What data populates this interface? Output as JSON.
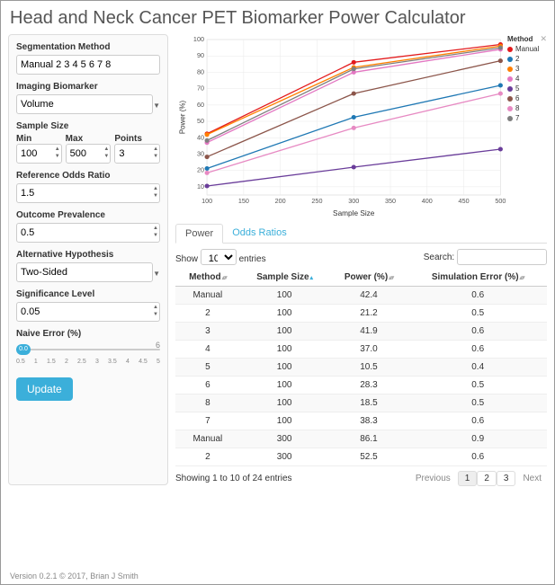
{
  "title": "Head and Neck Cancer PET Biomarker Power Calculator",
  "version": "Version 0.2.1 © 2017, Brian J Smith",
  "sidebar": {
    "segmentation": {
      "label": "Segmentation Method",
      "value": "Manual 2 3 4 5 6 7 8"
    },
    "biomarker": {
      "label": "Imaging Biomarker",
      "value": "Volume"
    },
    "sample_size": {
      "label": "Sample Size",
      "min_label": "Min",
      "max_label": "Max",
      "points_label": "Points",
      "min": "100",
      "max": "500",
      "points": "3"
    },
    "odds_ratio": {
      "label": "Reference Odds Ratio",
      "value": "1.5"
    },
    "prevalence": {
      "label": "Outcome Prevalence",
      "value": "0.5"
    },
    "hypothesis": {
      "label": "Alternative Hypothesis",
      "value": "Two-Sided"
    },
    "sig_level": {
      "label": "Significance Level",
      "value": "0.05"
    },
    "naive_error": {
      "label": "Naive Error (%)",
      "value": "0.0",
      "max": "6",
      "ticks": [
        "0.5",
        "1",
        "1.5",
        "2",
        "2.5",
        "3",
        "3.5",
        "4",
        "4.5",
        "5"
      ]
    },
    "update": "Update"
  },
  "chart": {
    "type": "line",
    "xlabel": "Sample Size",
    "ylabel": "Power (%)",
    "xlim": [
      100,
      500
    ],
    "ylim": [
      5,
      100
    ],
    "xticks": [
      100,
      150,
      200,
      250,
      300,
      350,
      400,
      450,
      500
    ],
    "yticks": [
      10,
      20,
      30,
      40,
      50,
      60,
      70,
      80,
      90,
      100
    ],
    "label_fontsize": 8,
    "tick_fontsize": 7,
    "background": "#ffffff",
    "grid_color": "#e9e9e9",
    "marker_radius": 2.5,
    "line_width": 1.3,
    "x_points": [
      100,
      300,
      500
    ],
    "series": [
      {
        "name": "Manual",
        "color": "#e31a1c",
        "y": [
          42.4,
          86.1,
          97
        ]
      },
      {
        "name": "2",
        "color": "#1f78b4",
        "y": [
          21.2,
          52.5,
          72
        ]
      },
      {
        "name": "3",
        "color": "#ff7f00",
        "y": [
          41.9,
          83,
          96
        ]
      },
      {
        "name": "4",
        "color": "#e377c2",
        "y": [
          37.0,
          80,
          94
        ]
      },
      {
        "name": "5",
        "color": "#6a3d9a",
        "y": [
          10.5,
          22,
          33
        ]
      },
      {
        "name": "6",
        "color": "#8c564b",
        "y": [
          28.3,
          67,
          87
        ]
      },
      {
        "name": "8",
        "color": "#e78ac3",
        "y": [
          18.5,
          46,
          67
        ]
      },
      {
        "name": "7",
        "color": "#7f7f7f",
        "y": [
          38.3,
          82,
          95
        ]
      }
    ],
    "legend_title": "Method"
  },
  "tabs": {
    "power": "Power",
    "odds": "Odds Ratios"
  },
  "table": {
    "show_prefix": "Show",
    "show_value": "10",
    "show_suffix": "entries",
    "search_label": "Search:",
    "search_value": "",
    "columns": [
      "Method",
      "Sample Size",
      "Power (%)",
      "Simulation Error (%)"
    ],
    "rows": [
      [
        "Manual",
        "100",
        "42.4",
        "0.6"
      ],
      [
        "2",
        "100",
        "21.2",
        "0.5"
      ],
      [
        "3",
        "100",
        "41.9",
        "0.6"
      ],
      [
        "4",
        "100",
        "37.0",
        "0.6"
      ],
      [
        "5",
        "100",
        "10.5",
        "0.4"
      ],
      [
        "6",
        "100",
        "28.3",
        "0.5"
      ],
      [
        "8",
        "100",
        "18.5",
        "0.5"
      ],
      [
        "7",
        "100",
        "38.3",
        "0.6"
      ],
      [
        "Manual",
        "300",
        "86.1",
        "0.9"
      ],
      [
        "2",
        "300",
        "52.5",
        "0.6"
      ]
    ],
    "info": "Showing 1 to 10 of 24 entries",
    "prev": "Previous",
    "next": "Next",
    "pages": [
      "1",
      "2",
      "3"
    ],
    "active_page": 0
  }
}
